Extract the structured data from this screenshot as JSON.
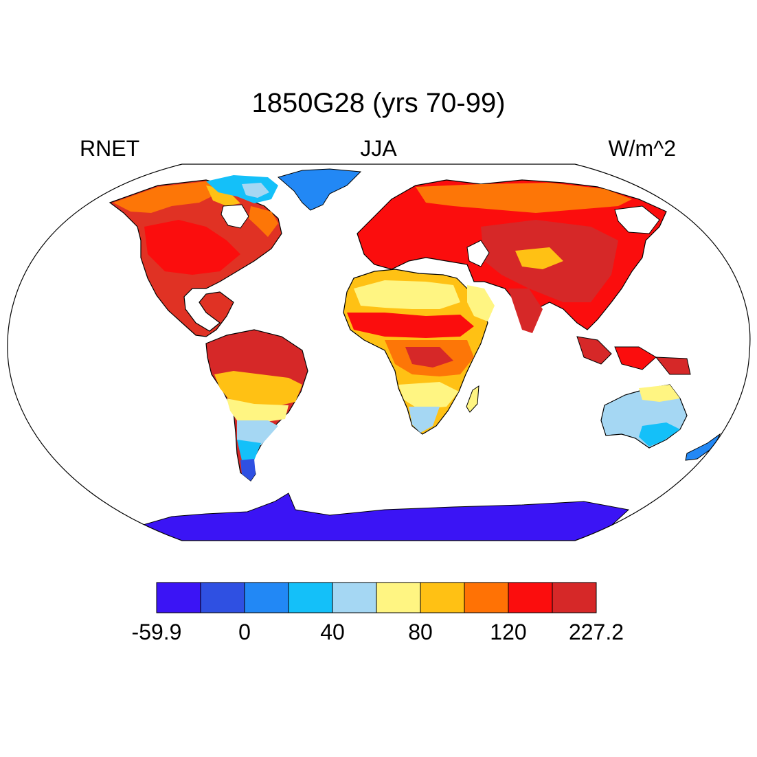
{
  "title": "1850G28 (yrs 70-99)",
  "left_string": "RNET",
  "center_string": "JJA",
  "right_string": "W/m^2",
  "projection": "Robinson",
  "colorbar": {
    "colors": [
      "#3b14f5",
      "#2f50e2",
      "#2288f5",
      "#14c0f9",
      "#a5d7f3",
      "#fff582",
      "#ffc114",
      "#ff7205",
      "#fb0d0d",
      "#d62828"
    ],
    "labels": [
      {
        "text": "-59.9",
        "boundary": 0
      },
      {
        "text": "0",
        "boundary": 2
      },
      {
        "text": "40",
        "boundary": 4
      },
      {
        "text": "80",
        "boundary": 6
      },
      {
        "text": "120",
        "boundary": 8
      },
      {
        "text": "227.2",
        "boundary": 10
      }
    ]
  }
}
